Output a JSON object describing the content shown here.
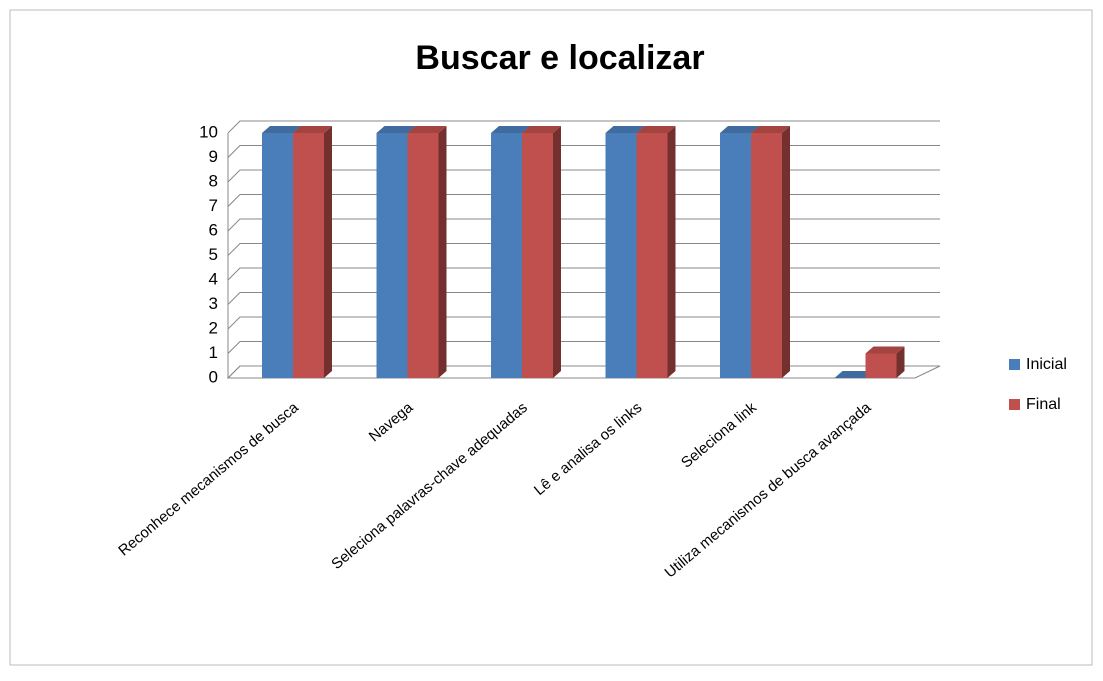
{
  "chart_data": {
    "type": "bar3d",
    "title": "Buscar e localizar",
    "categories": [
      "Reconhece mecanismos de busca",
      "Navega",
      "Seleciona palavras-chave adequadas",
      "Lê e analisa os links",
      "Seleciona link",
      "Utiliza mecanismos de busca avançada"
    ],
    "series": [
      {
        "name": "Inicial",
        "color": "#4a7ebb",
        "values": [
          10,
          10,
          10,
          10,
          10,
          0
        ]
      },
      {
        "name": "Final",
        "color": "#c0504d",
        "values": [
          10,
          10,
          10,
          10,
          10,
          1
        ]
      }
    ],
    "ylim": [
      0,
      10
    ],
    "yticks": [
      0,
      1,
      2,
      3,
      4,
      5,
      6,
      7,
      8,
      9,
      10
    ],
    "grid": true,
    "legend": "right"
  }
}
